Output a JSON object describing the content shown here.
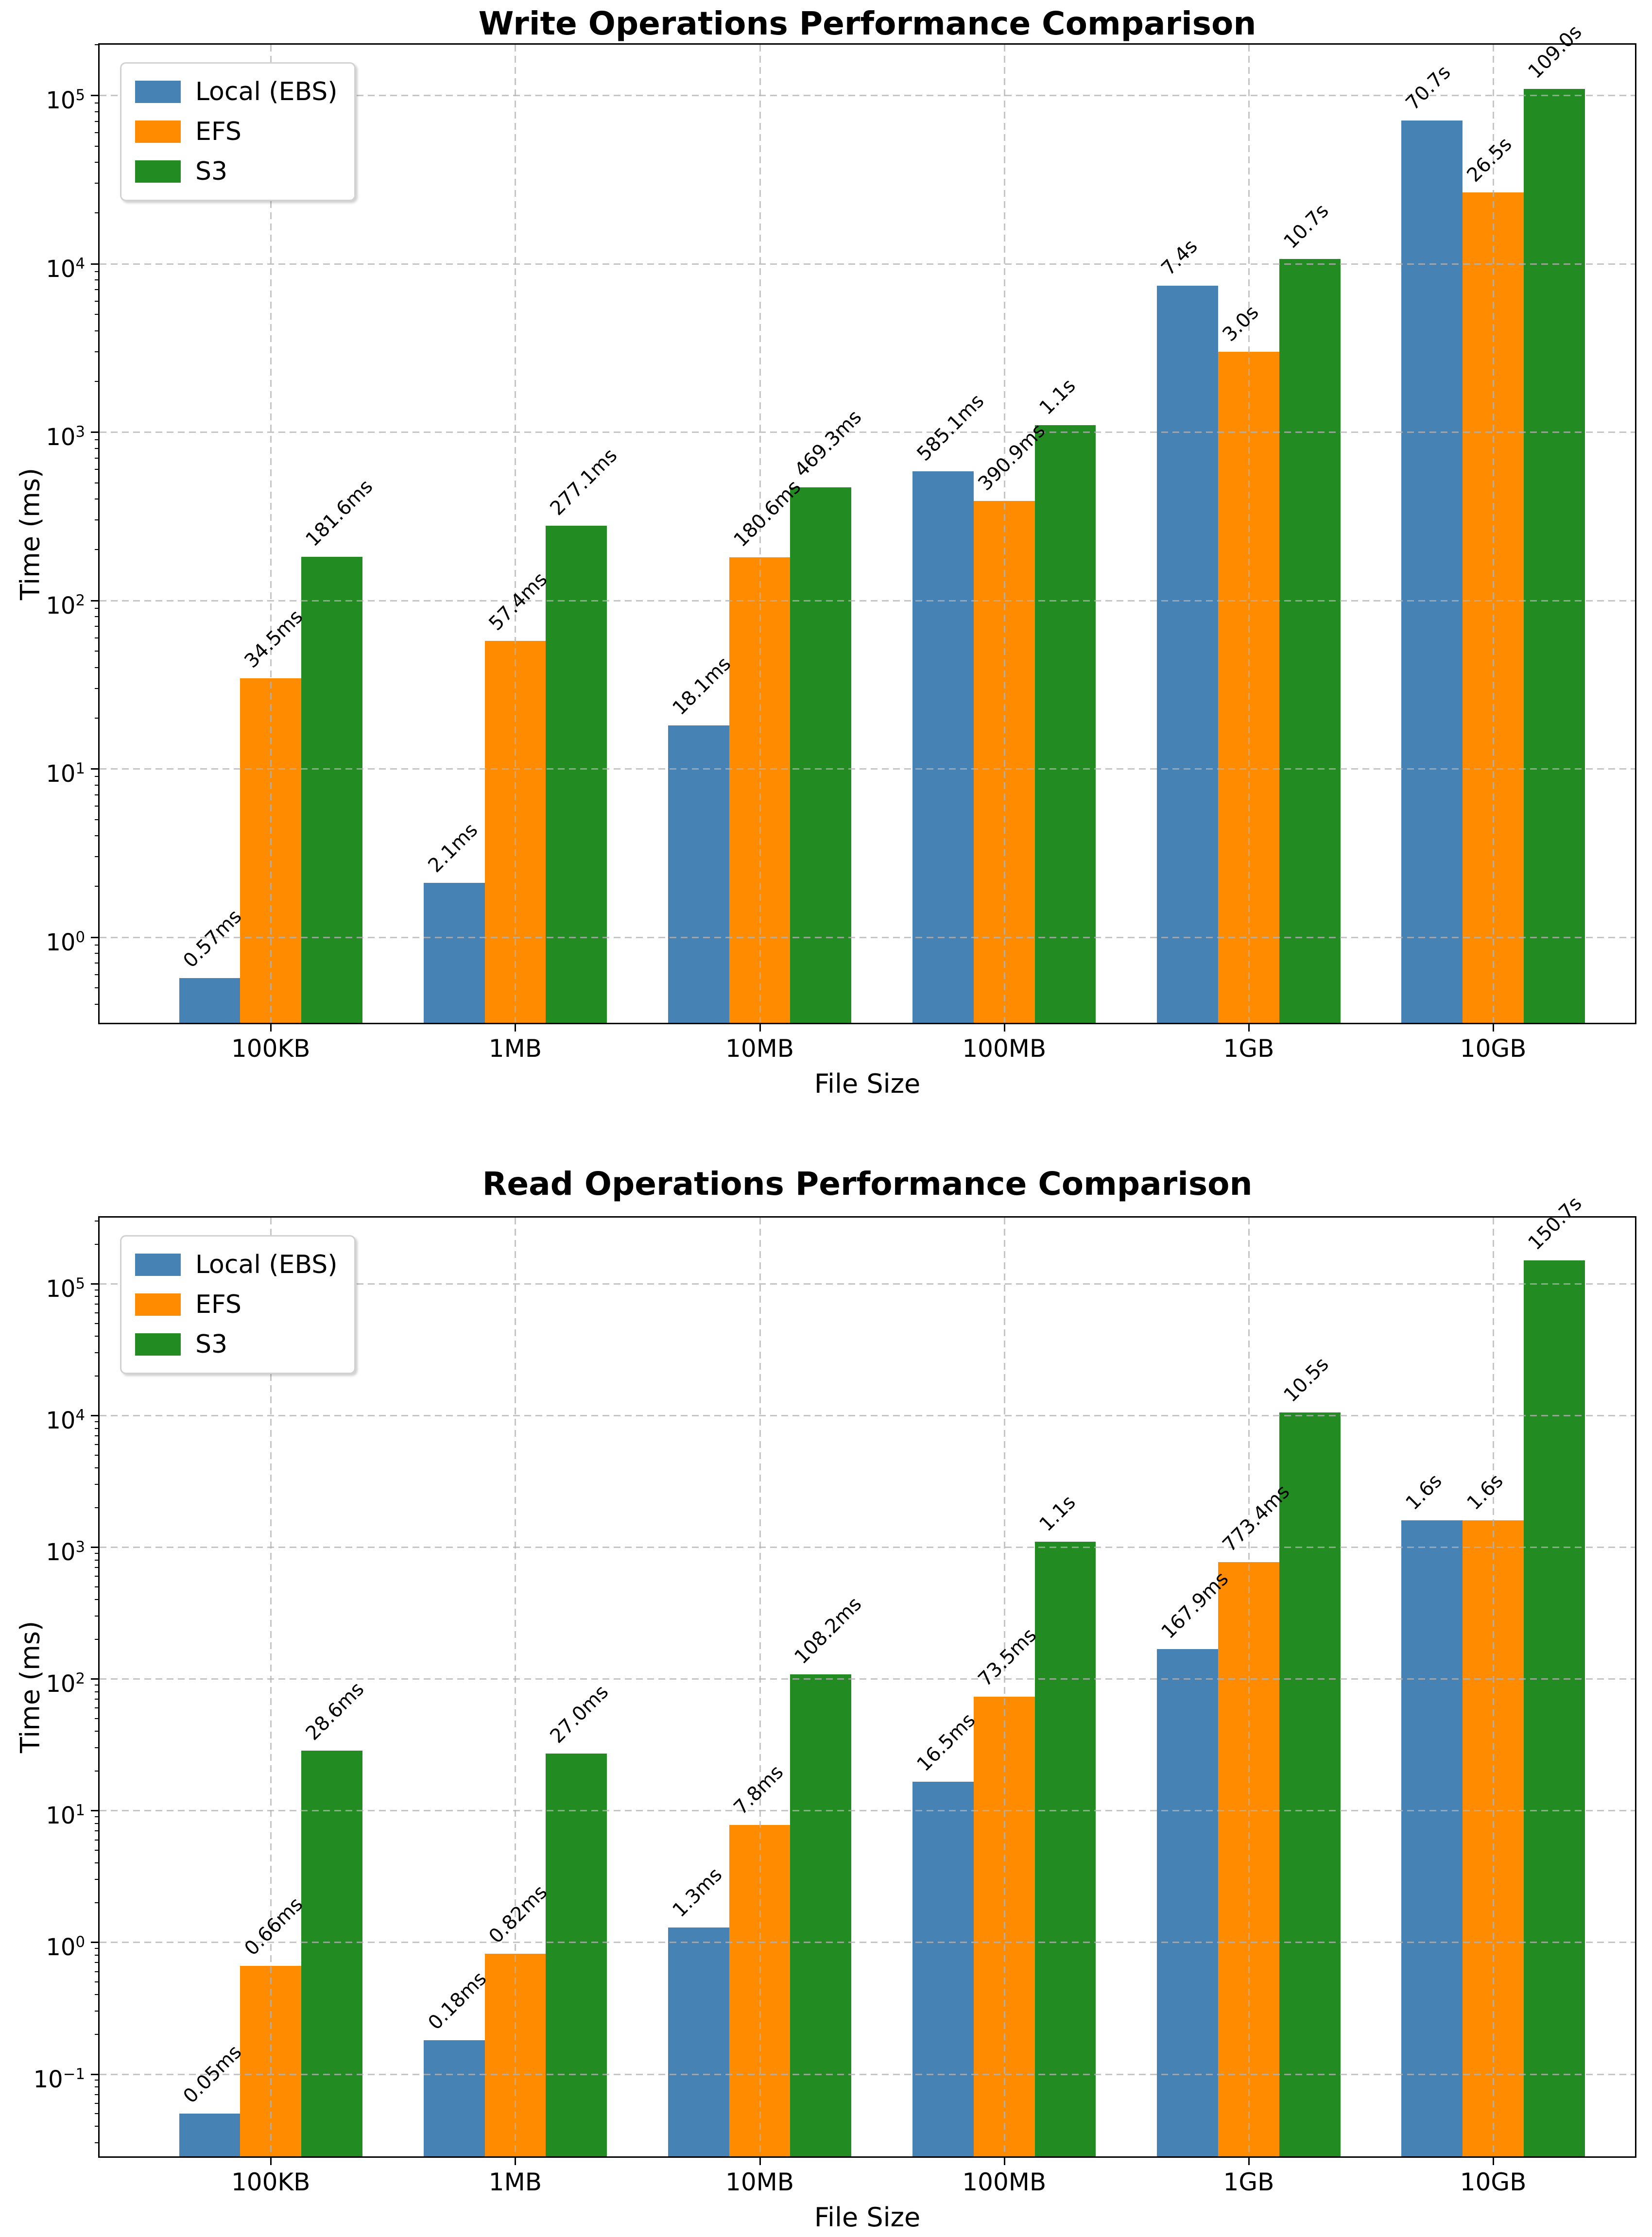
{
  "figure": {
    "background_color": "#ffffff",
    "text_color": "#000000",
    "grid_color": "#b2b2b2",
    "grid_style": "dashed"
  },
  "chart_data": [
    {
      "type": "bar",
      "title": "Write Operations Performance Comparison",
      "xlabel": "File Size",
      "ylabel": "Time (ms)",
      "y_scale": "log",
      "ylim": [
        0.31,
        200000
      ],
      "legend_position": "upper-left",
      "grid": "both-dashed",
      "categories": [
        "100KB",
        "1MB",
        "10MB",
        "100MB",
        "1GB",
        "10GB"
      ],
      "series": [
        {
          "name": "Local (EBS)",
          "color": "#4682B4",
          "values": [
            0.57,
            2.1,
            18.1,
            585.1,
            7400,
            70700
          ],
          "labels": [
            "0.57ms",
            "2.1ms",
            "18.1ms",
            "585.1ms",
            "7.4s",
            "70.7s"
          ]
        },
        {
          "name": "EFS",
          "color": "#FF8C00",
          "values": [
            34.5,
            57.4,
            180.6,
            390.9,
            3000,
            26500
          ],
          "labels": [
            "34.5ms",
            "57.4ms",
            "180.6ms",
            "390.9ms",
            "3.0s",
            "26.5s"
          ]
        },
        {
          "name": "S3",
          "color": "#228B22",
          "values": [
            181.6,
            277.1,
            469.3,
            1100,
            10700,
            109000
          ],
          "labels": [
            "181.6ms",
            "277.1ms",
            "469.3ms",
            "1.1s",
            "10.7s",
            "109.0s"
          ]
        }
      ]
    },
    {
      "type": "bar",
      "title": "Read Operations Performance Comparison",
      "xlabel": "File Size",
      "ylabel": "Time (ms)",
      "y_scale": "log",
      "ylim": [
        0.0237,
        318000
      ],
      "legend_position": "upper-left",
      "grid": "both-dashed",
      "categories": [
        "100KB",
        "1MB",
        "10MB",
        "100MB",
        "1GB",
        "10GB"
      ],
      "series": [
        {
          "name": "Local (EBS)",
          "color": "#4682B4",
          "values": [
            0.05,
            0.18,
            1.3,
            16.5,
            167.9,
            1600
          ],
          "labels": [
            "0.05ms",
            "0.18ms",
            "1.3ms",
            "16.5ms",
            "167.9ms",
            "1.6s"
          ]
        },
        {
          "name": "EFS",
          "color": "#FF8C00",
          "values": [
            0.66,
            0.82,
            7.8,
            73.5,
            773.4,
            1600
          ],
          "labels": [
            "0.66ms",
            "0.82ms",
            "7.8ms",
            "73.5ms",
            "773.4ms",
            "1.6s"
          ]
        },
        {
          "name": "S3",
          "color": "#228B22",
          "values": [
            28.6,
            27.0,
            108.2,
            1100,
            10500,
            150700
          ],
          "labels": [
            "28.6ms",
            "27.0ms",
            "108.2ms",
            "1.1s",
            "10.5s",
            "150.7s"
          ]
        }
      ]
    }
  ]
}
